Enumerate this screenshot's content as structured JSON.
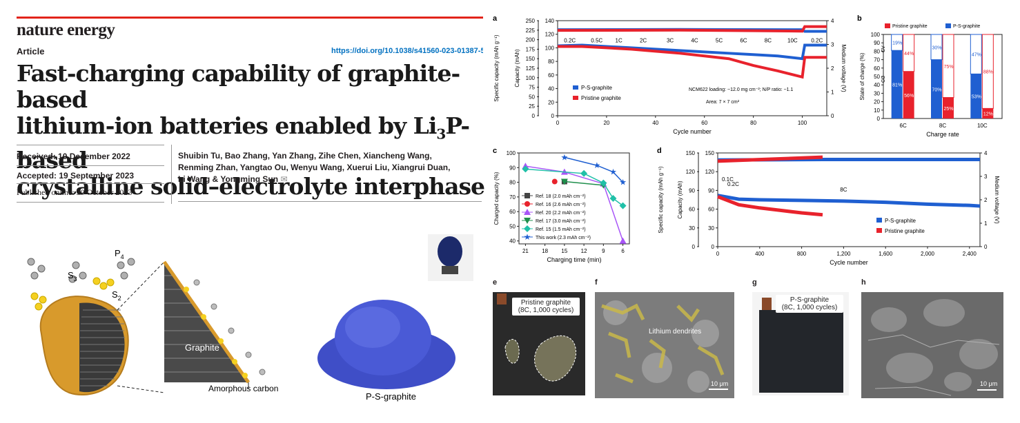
{
  "header": {
    "journal": "nature energy",
    "article_type": "Article",
    "doi": "https://doi.org/10.1038/s41560-023-01387-5",
    "title_line1": "Fast-charging capability of graphite-based",
    "title_line2a": "lithium-ion batteries enabled by Li",
    "title_line2_sub": "3",
    "title_line2b": "P-based",
    "title_line3": "crystalline solid–electrolyte interphase"
  },
  "meta": {
    "received_label": "Received:",
    "received": "10 December 2022",
    "accepted_label": "Accepted:",
    "accepted": "19 September 2023",
    "published": "Published online: 30 October 2023"
  },
  "authors": {
    "line1": "Shuibin Tu, Bao Zhang, Yan Zhang, Zihe Chen, Xiancheng Wang,",
    "line2": "Renming Zhan, Yangtao Ou, Wenyu Wang, Xuerui Liu, Xiangrui Duan,",
    "line3": "Li Wang & Yongming Sun"
  },
  "schematic": {
    "p4": "P",
    "p4_sub": "4",
    "s3": "S",
    "s3_sub": "3",
    "s2": "S",
    "s2_sub": "2",
    "graphite": "Graphite",
    "amorphous_carbon": "Amorphous carbon",
    "ps_graphite": "P-S-graphite"
  },
  "colors": {
    "ps_graphite": "#1f5fd1",
    "pristine": "#e8222c",
    "ref18": "#444444",
    "ref16": "#e8222c",
    "ref20": "#a855f7",
    "ref17": "#1f8f4c",
    "ref15": "#20c0a8",
    "thiswork": "#1f5fd1",
    "title_red": "#e2231a"
  },
  "chart_data": [
    {
      "panel": "a",
      "type": "line",
      "xlabel": "Cycle number",
      "ylabel_left": "Specific capacity (mAh g⁻¹)",
      "ylabel_left2": "Capacity (mAh)",
      "ylabel_right": "Medium voltage (V)",
      "xlim": [
        0,
        110
      ],
      "xticks": [
        0,
        20,
        40,
        60,
        80,
        100
      ],
      "ylim_left": [
        0,
        250
      ],
      "yticks_left": [
        0,
        25,
        50,
        75,
        100,
        125,
        150,
        175,
        200,
        225,
        250
      ],
      "ylim_left2": [
        0,
        140
      ],
      "yticks_left2": [
        0,
        20,
        40,
        60,
        80,
        100,
        120,
        140
      ],
      "ylim_right": [
        0,
        4
      ],
      "yticks_right": [
        0,
        1,
        2,
        3,
        4
      ],
      "rate_labels": [
        "0.2C",
        "0.5C",
        "1C",
        "2C",
        "3C",
        "4C",
        "5C",
        "6C",
        "8C",
        "10C",
        "0.2C"
      ],
      "rate_label_x": [
        5,
        16,
        25,
        35,
        46,
        56,
        66,
        76,
        86,
        96,
        106
      ],
      "annotation1": "NCM622 loading: ~12.0 mg cm⁻²; N/P ratio: ~1.1",
      "annotation2": "Area: 7 × 7 cm²",
      "series": [
        {
          "name": "P-S-graphite",
          "capacity_mAh": [
            [
              0,
              103
            ],
            [
              10,
              104
            ],
            [
              20,
              102
            ],
            [
              30,
              100
            ],
            [
              40,
              98
            ],
            [
              50,
              96
            ],
            [
              60,
              94
            ],
            [
              70,
              92
            ],
            [
              80,
              90
            ],
            [
              90,
              88
            ],
            [
              100,
              84
            ],
            [
              101,
              104
            ],
            [
              110,
              104
            ]
          ],
          "voltage_V": [
            [
              0,
              3.62
            ],
            [
              50,
              3.63
            ],
            [
              100,
              3.62
            ],
            [
              101,
              3.55
            ],
            [
              110,
              3.55
            ]
          ]
        },
        {
          "name": "Pristine graphite",
          "capacity_mAh": [
            [
              0,
              102
            ],
            [
              10,
              102
            ],
            [
              20,
              100
            ],
            [
              30,
              98
            ],
            [
              40,
              95
            ],
            [
              50,
              92
            ],
            [
              60,
              88
            ],
            [
              70,
              84
            ],
            [
              80,
              74
            ],
            [
              90,
              66
            ],
            [
              100,
              57
            ],
            [
              101,
              86
            ],
            [
              110,
              86
            ]
          ],
          "voltage_V": [
            [
              0,
              3.59
            ],
            [
              50,
              3.6
            ],
            [
              100,
              3.56
            ],
            [
              101,
              3.75
            ],
            [
              110,
              3.75
            ]
          ]
        }
      ]
    },
    {
      "panel": "b",
      "type": "bar",
      "xlabel": "Charge rate",
      "ylabel": "State of charge (%)",
      "ylim": [
        0,
        100
      ],
      "yticks": [
        0,
        10,
        20,
        30,
        40,
        50,
        60,
        70,
        80,
        90,
        100
      ],
      "categories": [
        "6C",
        "8C",
        "10C"
      ],
      "side_labels": [
        "CV",
        "CC"
      ],
      "series": [
        {
          "name": "P-S-graphite",
          "cc": [
            81,
            70,
            53
          ],
          "cv": [
            19,
            30,
            47
          ],
          "cc_label": [
            "81%",
            "70%",
            "53%"
          ],
          "cv_label": [
            "19%",
            "30%",
            "47%"
          ]
        },
        {
          "name": "Pristine graphite",
          "cc": [
            56,
            25,
            12
          ],
          "cv": [
            44,
            75,
            88
          ],
          "cc_label": [
            "56%",
            "25%",
            "12%"
          ],
          "cv_label": [
            "44%",
            "75%",
            "88%"
          ]
        }
      ]
    },
    {
      "panel": "c",
      "type": "scatter",
      "xlabel": "Charging time (min)",
      "ylabel": "Charged capacity (%)",
      "xticks": [
        21,
        18,
        15,
        12,
        9,
        6
      ],
      "xlim": [
        22,
        5
      ],
      "ylim": [
        38,
        100
      ],
      "yticks": [
        40,
        50,
        60,
        70,
        80,
        90,
        100
      ],
      "series": [
        {
          "name": "Ref. 18 (2.0 mAh cm⁻²)",
          "points": [
            [
              15,
              80.5
            ]
          ]
        },
        {
          "name": "Ref. 16 (2.6 mAh cm⁻²)",
          "points": [
            [
              16.5,
              80.5
            ]
          ]
        },
        {
          "name": "Ref. 20 (2.2 mAh cm⁻²)",
          "points": [
            [
              21,
              91
            ],
            [
              15,
              87
            ],
            [
              9,
              79
            ],
            [
              6,
              40
            ]
          ]
        },
        {
          "name": "Ref. 17 (3.0 mAh cm⁻²)",
          "points": [
            [
              15,
              80.5
            ],
            [
              9,
              78
            ]
          ]
        },
        {
          "name": "Ref. 15 (1.5 mAh cm⁻²)",
          "points": [
            [
              21,
              89
            ],
            [
              12,
              86
            ],
            [
              9,
              79.5
            ],
            [
              7.5,
              69
            ],
            [
              6,
              64
            ]
          ]
        },
        {
          "name": "This work (2.3 mAh cm⁻²)",
          "points": [
            [
              15,
              97
            ],
            [
              10,
              91.5
            ],
            [
              7.5,
              87
            ],
            [
              6,
              80
            ]
          ]
        }
      ]
    },
    {
      "panel": "d",
      "type": "line",
      "xlabel": "Cycle number",
      "ylabel_left": "Specific capacity (mAh g⁻¹)",
      "ylabel_left2": "Capacity (mAh)",
      "ylabel_right": "Medium voltage (V)",
      "xlim": [
        0,
        2500
      ],
      "xticks": [
        0,
        400,
        800,
        1200,
        1600,
        2000,
        2400
      ],
      "xtick_labels": [
        "0",
        "400",
        "800",
        "1,200",
        "1,600",
        "2,000",
        "2,400"
      ],
      "ylim_left": [
        0,
        150
      ],
      "yticks_left": [
        0,
        30,
        60,
        90,
        120,
        150
      ],
      "ylim_left2": [
        0,
        150
      ],
      "yticks_left2": [
        0,
        30,
        60,
        90,
        120,
        150
      ],
      "ylim_right": [
        0,
        4
      ],
      "yticks_right": [
        0,
        1,
        2,
        3,
        4
      ],
      "rate_labels": [
        "0.1C",
        "0.2C",
        "8C"
      ],
      "series": [
        {
          "name": "P-S-graphite",
          "capacity": [
            [
              0,
              82
            ],
            [
              200,
              76
            ],
            [
              400,
              75
            ],
            [
              800,
              74
            ],
            [
              1200,
              73
            ],
            [
              1600,
              71
            ],
            [
              2000,
              68
            ],
            [
              2400,
              66
            ],
            [
              2500,
              65
            ]
          ],
          "voltage_V": [
            [
              0,
              3.7
            ],
            [
              1000,
              3.72
            ],
            [
              2500,
              3.72
            ]
          ]
        },
        {
          "name": "Pristine graphite",
          "capacity": [
            [
              0,
              80
            ],
            [
              200,
              67
            ],
            [
              400,
              62
            ],
            [
              600,
              58
            ],
            [
              800,
              54
            ],
            [
              1000,
              51
            ]
          ],
          "voltage_V": [
            [
              0,
              3.65
            ],
            [
              1000,
              3.82
            ]
          ]
        }
      ]
    }
  ],
  "panels": {
    "a": "a",
    "b": "b",
    "c": "c",
    "d": "d",
    "e": "e",
    "f": "f",
    "g": "g",
    "h": "h"
  },
  "photos": {
    "e_label1": "Pristine graphite",
    "e_label2": "(8C, 1,000 cycles)",
    "f_annotation": "Lithium dendrites",
    "f_scale": "10 μm",
    "g_label1": "P-S-graphite",
    "g_label2": "(8C, 1,000 cycles)",
    "h_scale": "10 μm"
  }
}
